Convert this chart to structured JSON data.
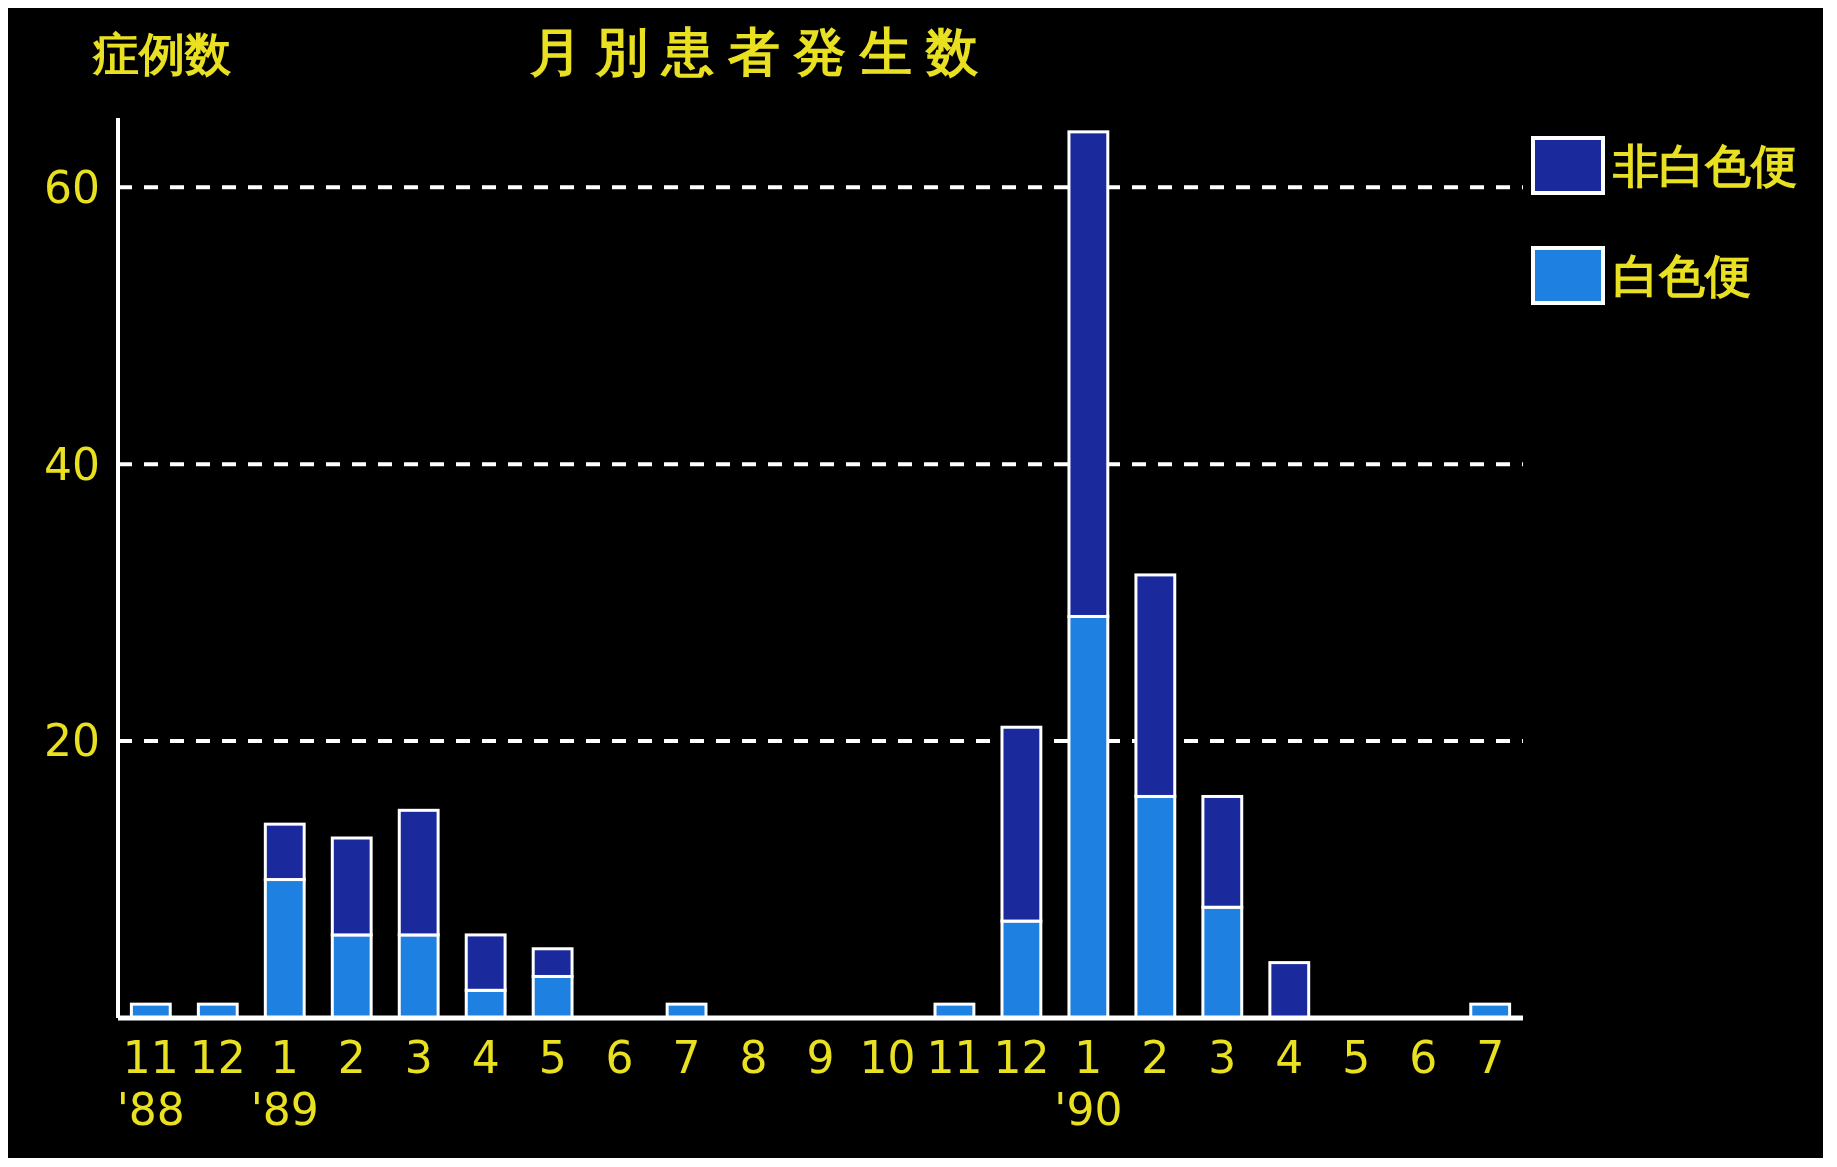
{
  "chart_data": {
    "type": "bar",
    "title": "月別患者発生数",
    "ylabel": "症例数",
    "stacked": true,
    "categories": [
      "11\n'88",
      "12",
      "1\n'89",
      "2",
      "3",
      "4",
      "5",
      "6",
      "7",
      "8",
      "9",
      "10",
      "11",
      "12",
      "1\n'90",
      "2",
      "3",
      "4",
      "5",
      "6",
      "7"
    ],
    "series": [
      {
        "name": "白色便",
        "color": "#1e80e0",
        "values": [
          1,
          1,
          10,
          6,
          6,
          2,
          3,
          0,
          1,
          0,
          0,
          0,
          1,
          7,
          29,
          16,
          8,
          0,
          0,
          0,
          1
        ]
      },
      {
        "name": "非白色便",
        "color": "#1a2a9c",
        "values": [
          0,
          0,
          4,
          7,
          9,
          4,
          2,
          0,
          0,
          0,
          0,
          0,
          0,
          14,
          35,
          16,
          8,
          4,
          0,
          0,
          0
        ]
      }
    ],
    "ylim": [
      0,
      65
    ],
    "yticks": [
      20,
      40,
      60
    ],
    "grid": "y",
    "legend": "top right"
  }
}
